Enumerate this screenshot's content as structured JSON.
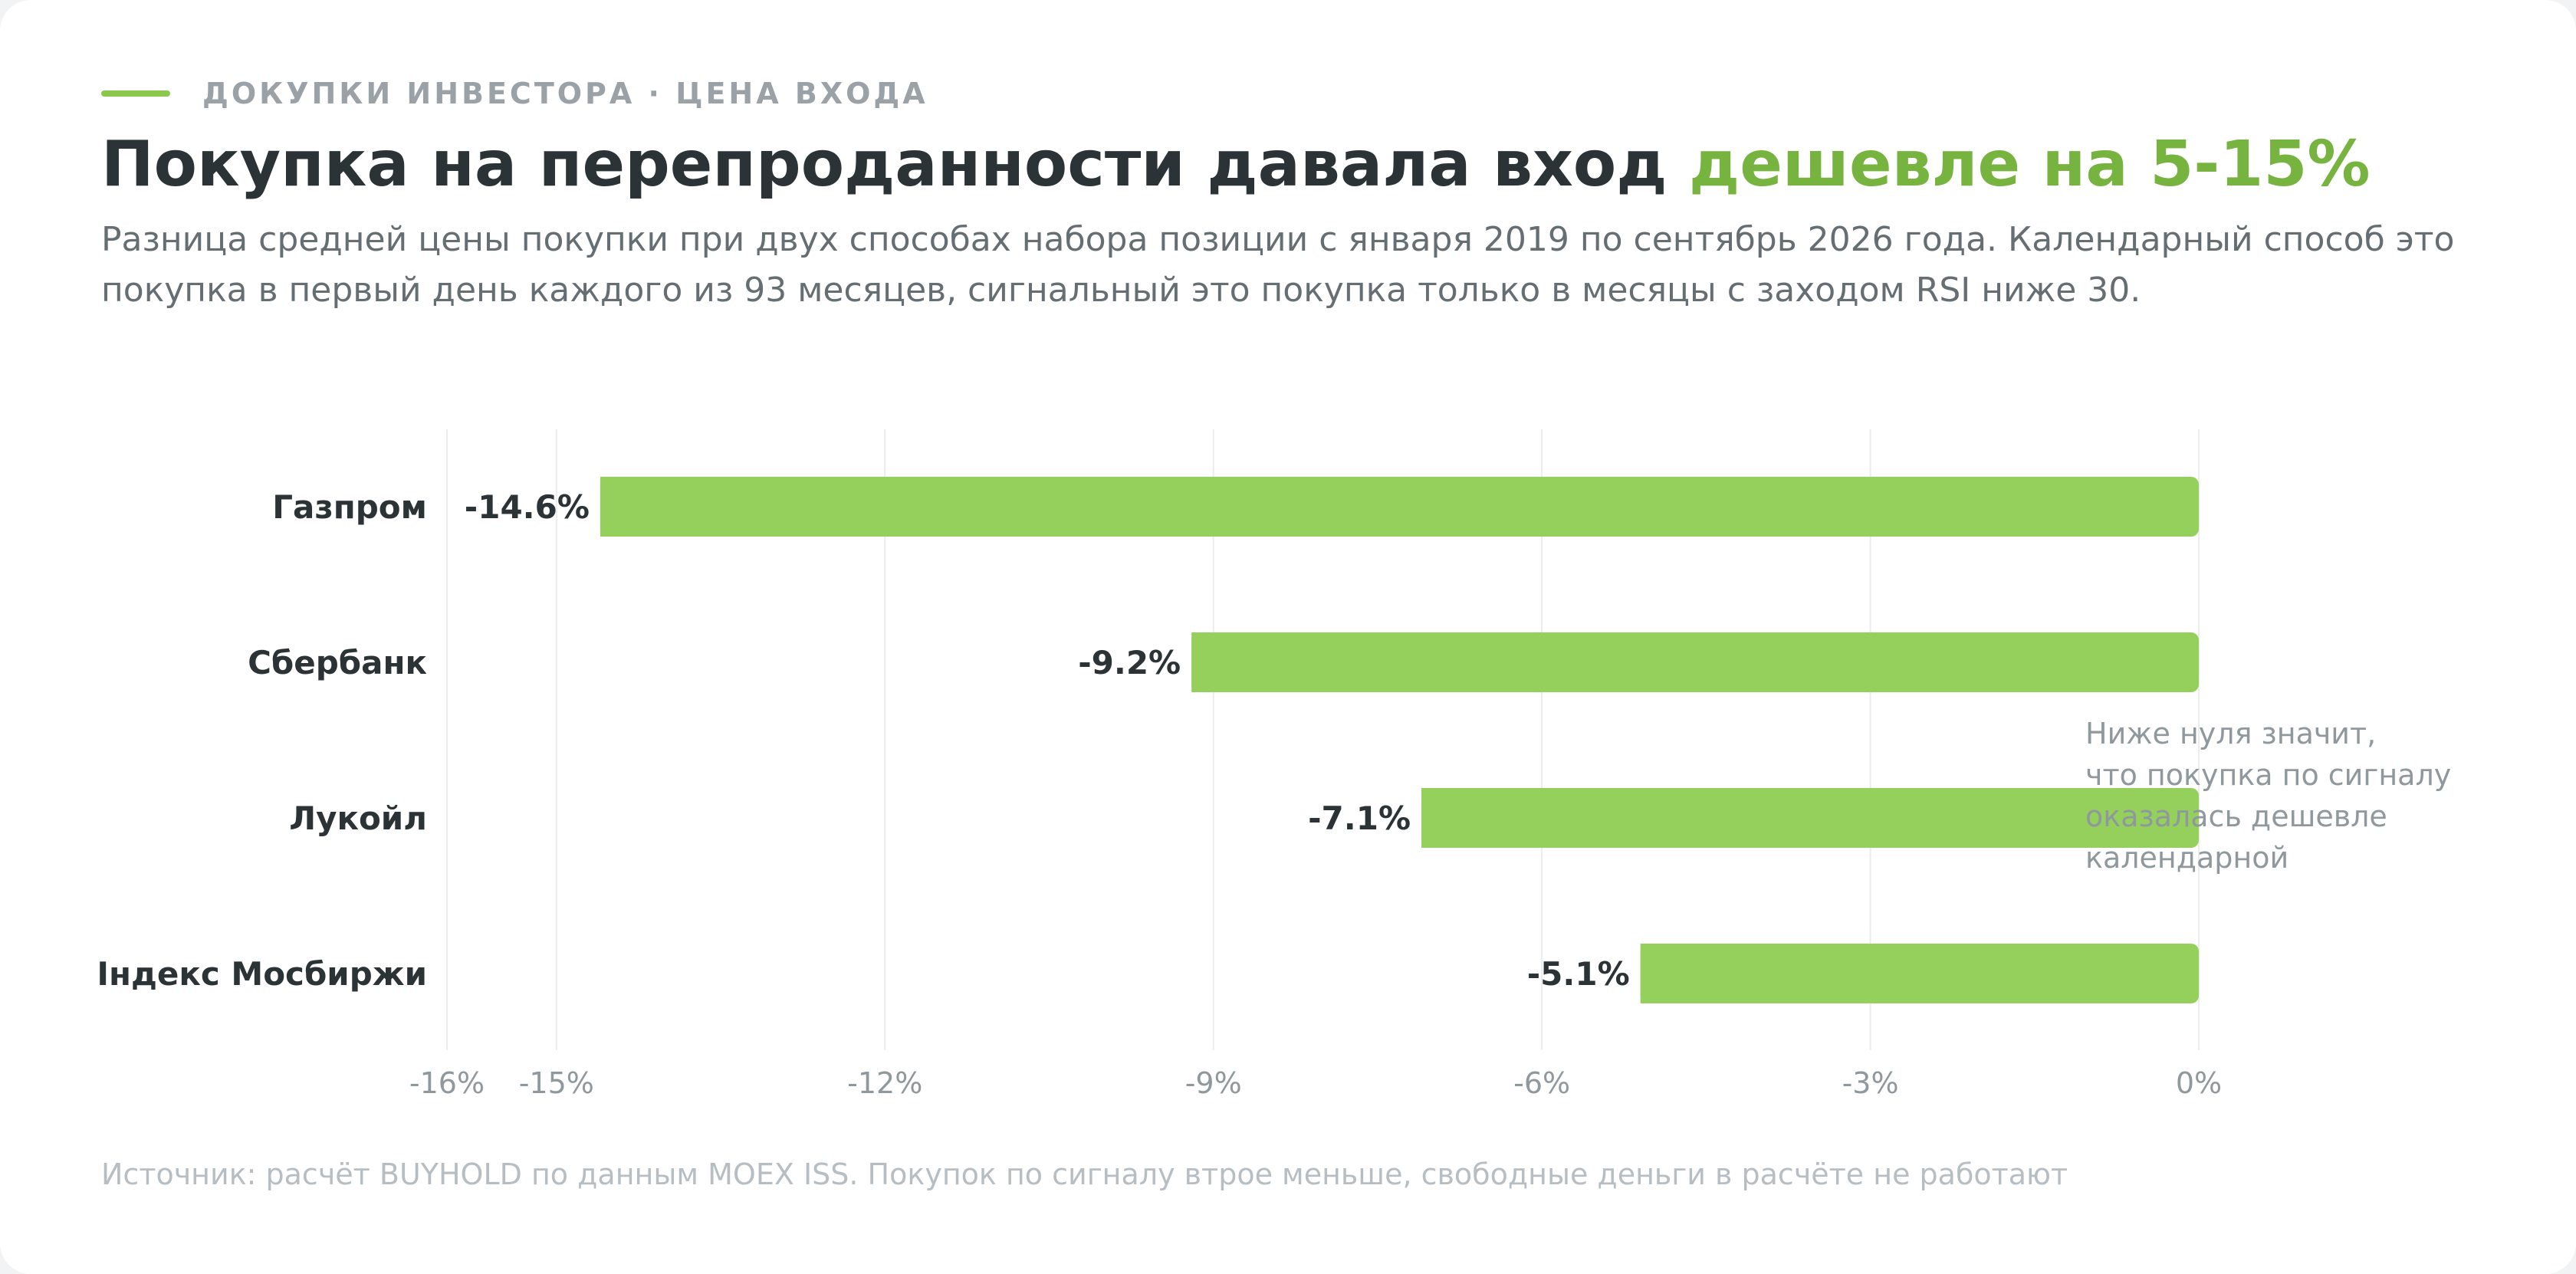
{
  "header": {
    "eyebrow": "ДОКУПКИ ИНВЕСТОРА · ЦЕНА ВХОДА",
    "title_main": "Покупка на перепроданности давала вход ",
    "title_accent": "дешевле на 5-15%",
    "subtitle": "Разница средней цены покупки при двух способах набора позиции с января 2019 по сентябрь 2026 года. Календарный способ это покупка в первый день каждого из 93 месяцев, сигнальный это покупка только в месяцы с заходом RSI ниже 30."
  },
  "chart_data": {
    "type": "bar",
    "orientation": "horizontal",
    "categories": [
      "Газпром",
      "Сбербанк",
      "Лукойл",
      "Індекс Мосбиржи"
    ],
    "values": [
      -14.6,
      -9.2,
      -7.1,
      -5.1
    ],
    "value_labels": [
      "-14.6%",
      "-9.2%",
      "-7.1%",
      "-5.1%"
    ],
    "xlim": [
      -16,
      0
    ],
    "x_ticks": [
      -16,
      -15,
      -12,
      -9,
      -6,
      -3,
      0
    ],
    "x_tick_labels": [
      "-16%",
      "-15%",
      "-12%",
      "-9%",
      "-6%",
      "-3%",
      "0%"
    ],
    "grid": true,
    "bar_color": "#95cf5c",
    "annotation": [
      "Ниже нуля значит,",
      "что покупка по сигналу",
      "оказалась дешевле",
      "календарной"
    ]
  },
  "footer": {
    "source": "Источник: расчёт BUYHOLD по данным MOEX ISS. Покупок по сигналу втрое меньше, свободные деньги в расчёте не работают"
  },
  "colors": {
    "accent": "#76b33f",
    "bar": "#95cf5c",
    "text": "#2b3336",
    "muted": "#8f989d"
  }
}
